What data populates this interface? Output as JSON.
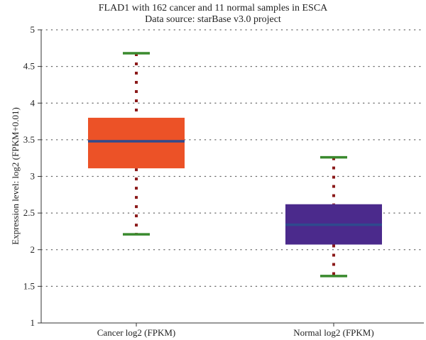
{
  "chart_data": {
    "type": "box",
    "title": "FLAD1 with 162 cancer and 11 normal samples in ESCA",
    "subtitle": "Data source: starBase v3.0 project",
    "ylabel": "Expression level: log2 (FPKM+0.01)",
    "ylim": [
      1,
      5
    ],
    "yticks": [
      "1",
      "1.5",
      "2",
      "2.5",
      "3",
      "3.5",
      "4",
      "4.5",
      "5"
    ],
    "grid": "horizontal dotted",
    "categories": [
      "Cancer log2 (FPKM)",
      "Normal log2 (FPKM)"
    ],
    "boxes": [
      {
        "category": "Cancer log2 (FPKM)",
        "whisker_high": 4.68,
        "q3": 3.8,
        "median": 3.48,
        "q1": 3.11,
        "whisker_low": 2.21,
        "color": "#ec5227"
      },
      {
        "category": "Normal log2 (FPKM)",
        "whisker_high": 3.26,
        "q3": 2.62,
        "median": 2.34,
        "q1": 2.07,
        "whisker_low": 1.64,
        "color": "#4b2a8c"
      }
    ],
    "median_color": "#2f4a8e",
    "whisker_cap_color": "#3a8a2e",
    "whisker_line_color": "#8b1a1a"
  }
}
